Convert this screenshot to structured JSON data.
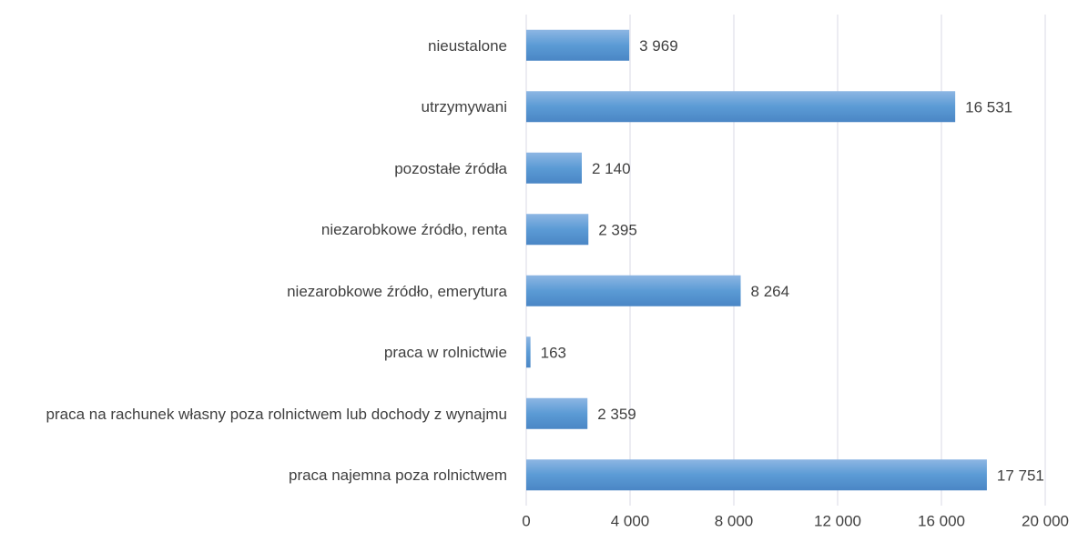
{
  "chart_data": {
    "type": "bar",
    "orientation": "horizontal",
    "categories": [
      "nieustalone",
      "utrzymywani",
      "pozostałe źródła",
      "niezarobkowe źródło, renta",
      "niezarobkowe źródło, emerytura",
      "praca w rolnictwie",
      "praca na rachunek własny poza rolnictwem lub dochody z wynajmu",
      "praca najemna poza rolnictwem"
    ],
    "values": [
      3969,
      16531,
      2140,
      2395,
      8264,
      163,
      2359,
      17751
    ],
    "value_labels": [
      "3 969",
      "16 531",
      "2 140",
      "2 395",
      "8 264",
      "163",
      "2 359",
      "17 751"
    ],
    "color": "#5b9bd5",
    "xlim": [
      0,
      20000
    ],
    "xticks": [
      0,
      {
        "value": 4000,
        "label": "4 000"
      },
      {
        "value": 8000,
        "label": "8 000"
      },
      {
        "value": 12000,
        "label": "12 000"
      },
      {
        "value": 16000,
        "label": "16 000"
      },
      {
        "value": 20000,
        "label": "20 000"
      }
    ],
    "grid": true
  }
}
